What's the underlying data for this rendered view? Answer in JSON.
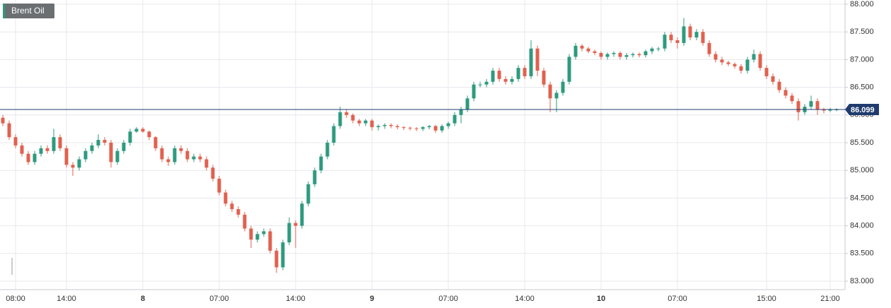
{
  "chart_data": {
    "type": "candlestick",
    "title": "Brent Oil",
    "categories": [
      null,
      null,
      "08:00",
      null,
      null,
      null,
      null,
      null,
      null,
      null,
      "14:00",
      null,
      null,
      null,
      null,
      null,
      null,
      null,
      null,
      null,
      null,
      null,
      "8",
      null,
      null,
      null,
      null,
      null,
      null,
      null,
      null,
      null,
      null,
      null,
      "07:00",
      null,
      null,
      null,
      null,
      null,
      null,
      null,
      null,
      null,
      null,
      null,
      "14:00",
      null,
      null,
      null,
      null,
      null,
      null,
      null,
      null,
      null,
      null,
      null,
      "9",
      null,
      null,
      null,
      null,
      null,
      null,
      null,
      null,
      null,
      null,
      null,
      "07:00",
      null,
      null,
      null,
      null,
      null,
      null,
      null,
      null,
      null,
      null,
      null,
      "14:00",
      null,
      null,
      null,
      null,
      null,
      null,
      null,
      null,
      null,
      null,
      null,
      "10",
      null,
      null,
      null,
      null,
      null,
      null,
      null,
      null,
      null,
      null,
      null,
      "07:00",
      null,
      null,
      null,
      null,
      null,
      null,
      null,
      null,
      null,
      null,
      null,
      null,
      null,
      "15:00",
      null,
      null,
      null,
      null,
      null,
      null,
      null,
      null,
      null,
      "21:00",
      null
    ],
    "open": [
      85.95,
      85.85,
      85.6,
      85.45,
      85.3,
      85.15,
      85.3,
      85.4,
      85.35,
      85.6,
      85.4,
      85.1,
      85.05,
      85.2,
      85.35,
      85.45,
      85.55,
      85.5,
      85.15,
      85.35,
      85.5,
      85.7,
      85.75,
      85.7,
      85.6,
      85.4,
      85.2,
      85.15,
      85.4,
      85.35,
      85.2,
      85.25,
      85.2,
      85.05,
      84.85,
      84.6,
      84.4,
      84.3,
      84.2,
      83.95,
      83.75,
      83.85,
      83.9,
      83.55,
      83.25,
      83.7,
      84.05,
      84.0,
      84.4,
      84.75,
      85.0,
      85.25,
      85.5,
      85.8,
      86.05,
      86.0,
      85.9,
      85.85,
      85.9,
      85.78,
      85.8,
      85.82,
      85.8,
      85.78,
      85.77,
      85.76,
      85.75,
      85.78,
      85.8,
      85.72,
      85.8,
      85.85,
      86.0,
      86.1,
      86.3,
      86.55,
      86.55,
      86.6,
      86.8,
      86.65,
      86.6,
      86.65,
      86.85,
      86.7,
      87.2,
      86.8,
      86.55,
      86.3,
      86.4,
      86.6,
      87.05,
      87.25,
      87.2,
      87.15,
      87.12,
      87.05,
      87.1,
      87.12,
      87.05,
      87.08,
      87.1,
      87.08,
      87.15,
      87.2,
      87.2,
      87.45,
      87.35,
      87.3,
      87.6,
      87.4,
      87.5,
      87.3,
      87.1,
      87.0,
      86.95,
      86.92,
      86.88,
      86.8,
      87.0,
      87.1,
      86.85,
      86.7,
      86.6,
      86.45,
      86.35,
      86.25,
      86.05,
      86.15,
      86.25,
      86.1,
      86.08,
      86.1
    ],
    "high": [
      86.0,
      85.9,
      85.65,
      85.5,
      85.35,
      85.35,
      85.45,
      85.45,
      85.75,
      85.65,
      85.45,
      85.15,
      85.25,
      85.4,
      85.5,
      85.65,
      85.6,
      85.55,
      85.4,
      85.55,
      85.75,
      85.78,
      85.78,
      85.72,
      85.62,
      85.45,
      85.25,
      85.45,
      85.45,
      85.4,
      85.3,
      85.3,
      85.25,
      85.1,
      84.9,
      84.65,
      84.45,
      84.35,
      84.25,
      84.0,
      83.9,
      83.95,
      83.95,
      83.6,
      83.75,
      84.15,
      84.1,
      84.45,
      84.8,
      85.05,
      85.3,
      85.55,
      85.85,
      86.15,
      86.1,
      86.03,
      85.93,
      85.93,
      85.93,
      85.83,
      85.85,
      85.85,
      85.83,
      85.8,
      85.79,
      85.78,
      85.8,
      85.82,
      85.82,
      85.83,
      85.88,
      86.05,
      86.15,
      86.35,
      86.6,
      86.6,
      86.65,
      86.85,
      86.85,
      86.7,
      86.7,
      86.9,
      86.9,
      87.35,
      87.25,
      86.85,
      86.6,
      86.45,
      86.65,
      87.1,
      87.3,
      87.28,
      87.23,
      87.18,
      87.15,
      87.13,
      87.15,
      87.15,
      87.12,
      87.13,
      87.13,
      87.18,
      87.23,
      87.23,
      87.5,
      87.5,
      87.4,
      87.75,
      87.65,
      87.55,
      87.55,
      87.35,
      87.15,
      87.05,
      86.98,
      86.95,
      86.92,
      87.05,
      87.18,
      87.15,
      86.9,
      86.75,
      86.65,
      86.5,
      86.4,
      86.3,
      86.2,
      86.35,
      86.3,
      86.13,
      86.13,
      86.12
    ],
    "low": [
      85.8,
      85.55,
      85.4,
      85.25,
      85.1,
      85.1,
      85.25,
      85.3,
      85.3,
      85.35,
      85.05,
      84.9,
      85.0,
      85.15,
      85.3,
      85.4,
      85.45,
      85.05,
      85.1,
      85.3,
      85.45,
      85.68,
      85.68,
      85.55,
      85.35,
      85.15,
      85.08,
      85.1,
      85.3,
      85.15,
      85.15,
      85.15,
      85.0,
      84.8,
      84.55,
      84.35,
      84.25,
      84.15,
      83.9,
      83.6,
      83.7,
      83.8,
      83.5,
      83.15,
      83.2,
      83.65,
      83.6,
      83.95,
      84.35,
      84.7,
      84.95,
      85.2,
      85.45,
      85.75,
      85.95,
      85.85,
      85.8,
      85.8,
      85.72,
      85.72,
      85.75,
      85.76,
      85.74,
      85.73,
      85.72,
      85.71,
      85.71,
      85.74,
      85.68,
      85.68,
      85.75,
      85.8,
      85.85,
      86.05,
      86.25,
      86.5,
      86.5,
      86.55,
      86.6,
      86.55,
      86.55,
      86.6,
      86.65,
      86.65,
      86.7,
      86.5,
      86.05,
      86.05,
      86.35,
      86.55,
      87.0,
      87.15,
      87.12,
      87.08,
      87.0,
      87.0,
      87.05,
      87.0,
      87.0,
      87.04,
      87.04,
      87.04,
      87.1,
      87.15,
      87.15,
      87.3,
      87.2,
      87.25,
      87.35,
      87.35,
      87.25,
      87.05,
      86.95,
      86.9,
      86.88,
      86.84,
      86.75,
      86.75,
      86.95,
      86.8,
      86.65,
      86.55,
      86.4,
      86.3,
      86.2,
      85.9,
      86.0,
      86.1,
      86.0,
      86.03,
      86.05,
      86.07
    ],
    "close": [
      85.85,
      85.6,
      85.45,
      85.3,
      85.15,
      85.3,
      85.4,
      85.35,
      85.6,
      85.4,
      85.1,
      85.05,
      85.2,
      85.35,
      85.45,
      85.55,
      85.5,
      85.15,
      85.35,
      85.5,
      85.7,
      85.75,
      85.7,
      85.6,
      85.4,
      85.2,
      85.15,
      85.4,
      85.35,
      85.2,
      85.25,
      85.2,
      85.05,
      84.85,
      84.6,
      84.4,
      84.3,
      84.2,
      83.95,
      83.75,
      83.85,
      83.9,
      83.55,
      83.25,
      83.7,
      84.05,
      84.0,
      84.4,
      84.75,
      85.0,
      85.25,
      85.5,
      85.8,
      86.05,
      86.0,
      85.9,
      85.85,
      85.9,
      85.78,
      85.8,
      85.82,
      85.8,
      85.78,
      85.77,
      85.76,
      85.75,
      85.78,
      85.8,
      85.72,
      85.8,
      85.85,
      86.0,
      86.1,
      86.3,
      86.55,
      86.55,
      86.6,
      86.8,
      86.65,
      86.6,
      86.65,
      86.85,
      86.7,
      87.2,
      86.8,
      86.55,
      86.3,
      86.4,
      86.6,
      87.05,
      87.25,
      87.2,
      87.15,
      87.12,
      87.05,
      87.1,
      87.12,
      87.05,
      87.08,
      87.1,
      87.08,
      87.15,
      87.2,
      87.2,
      87.45,
      87.35,
      87.3,
      87.6,
      87.4,
      87.5,
      87.3,
      87.1,
      87.0,
      86.95,
      86.92,
      86.88,
      86.8,
      87.0,
      87.1,
      86.85,
      86.7,
      86.6,
      86.45,
      86.35,
      86.25,
      86.05,
      86.15,
      86.25,
      86.1,
      86.08,
      86.1,
      86.1
    ],
    "up_color": "#2e9a7e",
    "down_color": "#e0614f",
    "ylim": [
      83.0,
      88.0
    ],
    "yticks": [
      {
        "value": 83,
        "label": "83.000"
      },
      {
        "value": 83.5,
        "label": "83.500"
      },
      {
        "value": 84,
        "label": "84.000"
      },
      {
        "value": 84.5,
        "label": "84.500"
      },
      {
        "value": 85,
        "label": "85.000"
      },
      {
        "value": 85.5,
        "label": "85.500"
      },
      {
        "value": 86,
        "label": "86.000"
      },
      {
        "value": 86.5,
        "label": "86.500"
      },
      {
        "value": 87,
        "label": "87.000"
      },
      {
        "value": 87.5,
        "label": "87.500"
      },
      {
        "value": 88,
        "label": "88.000"
      }
    ],
    "last_price": 86.099,
    "last_price_color": "#1f3b6e",
    "grid": true
  }
}
